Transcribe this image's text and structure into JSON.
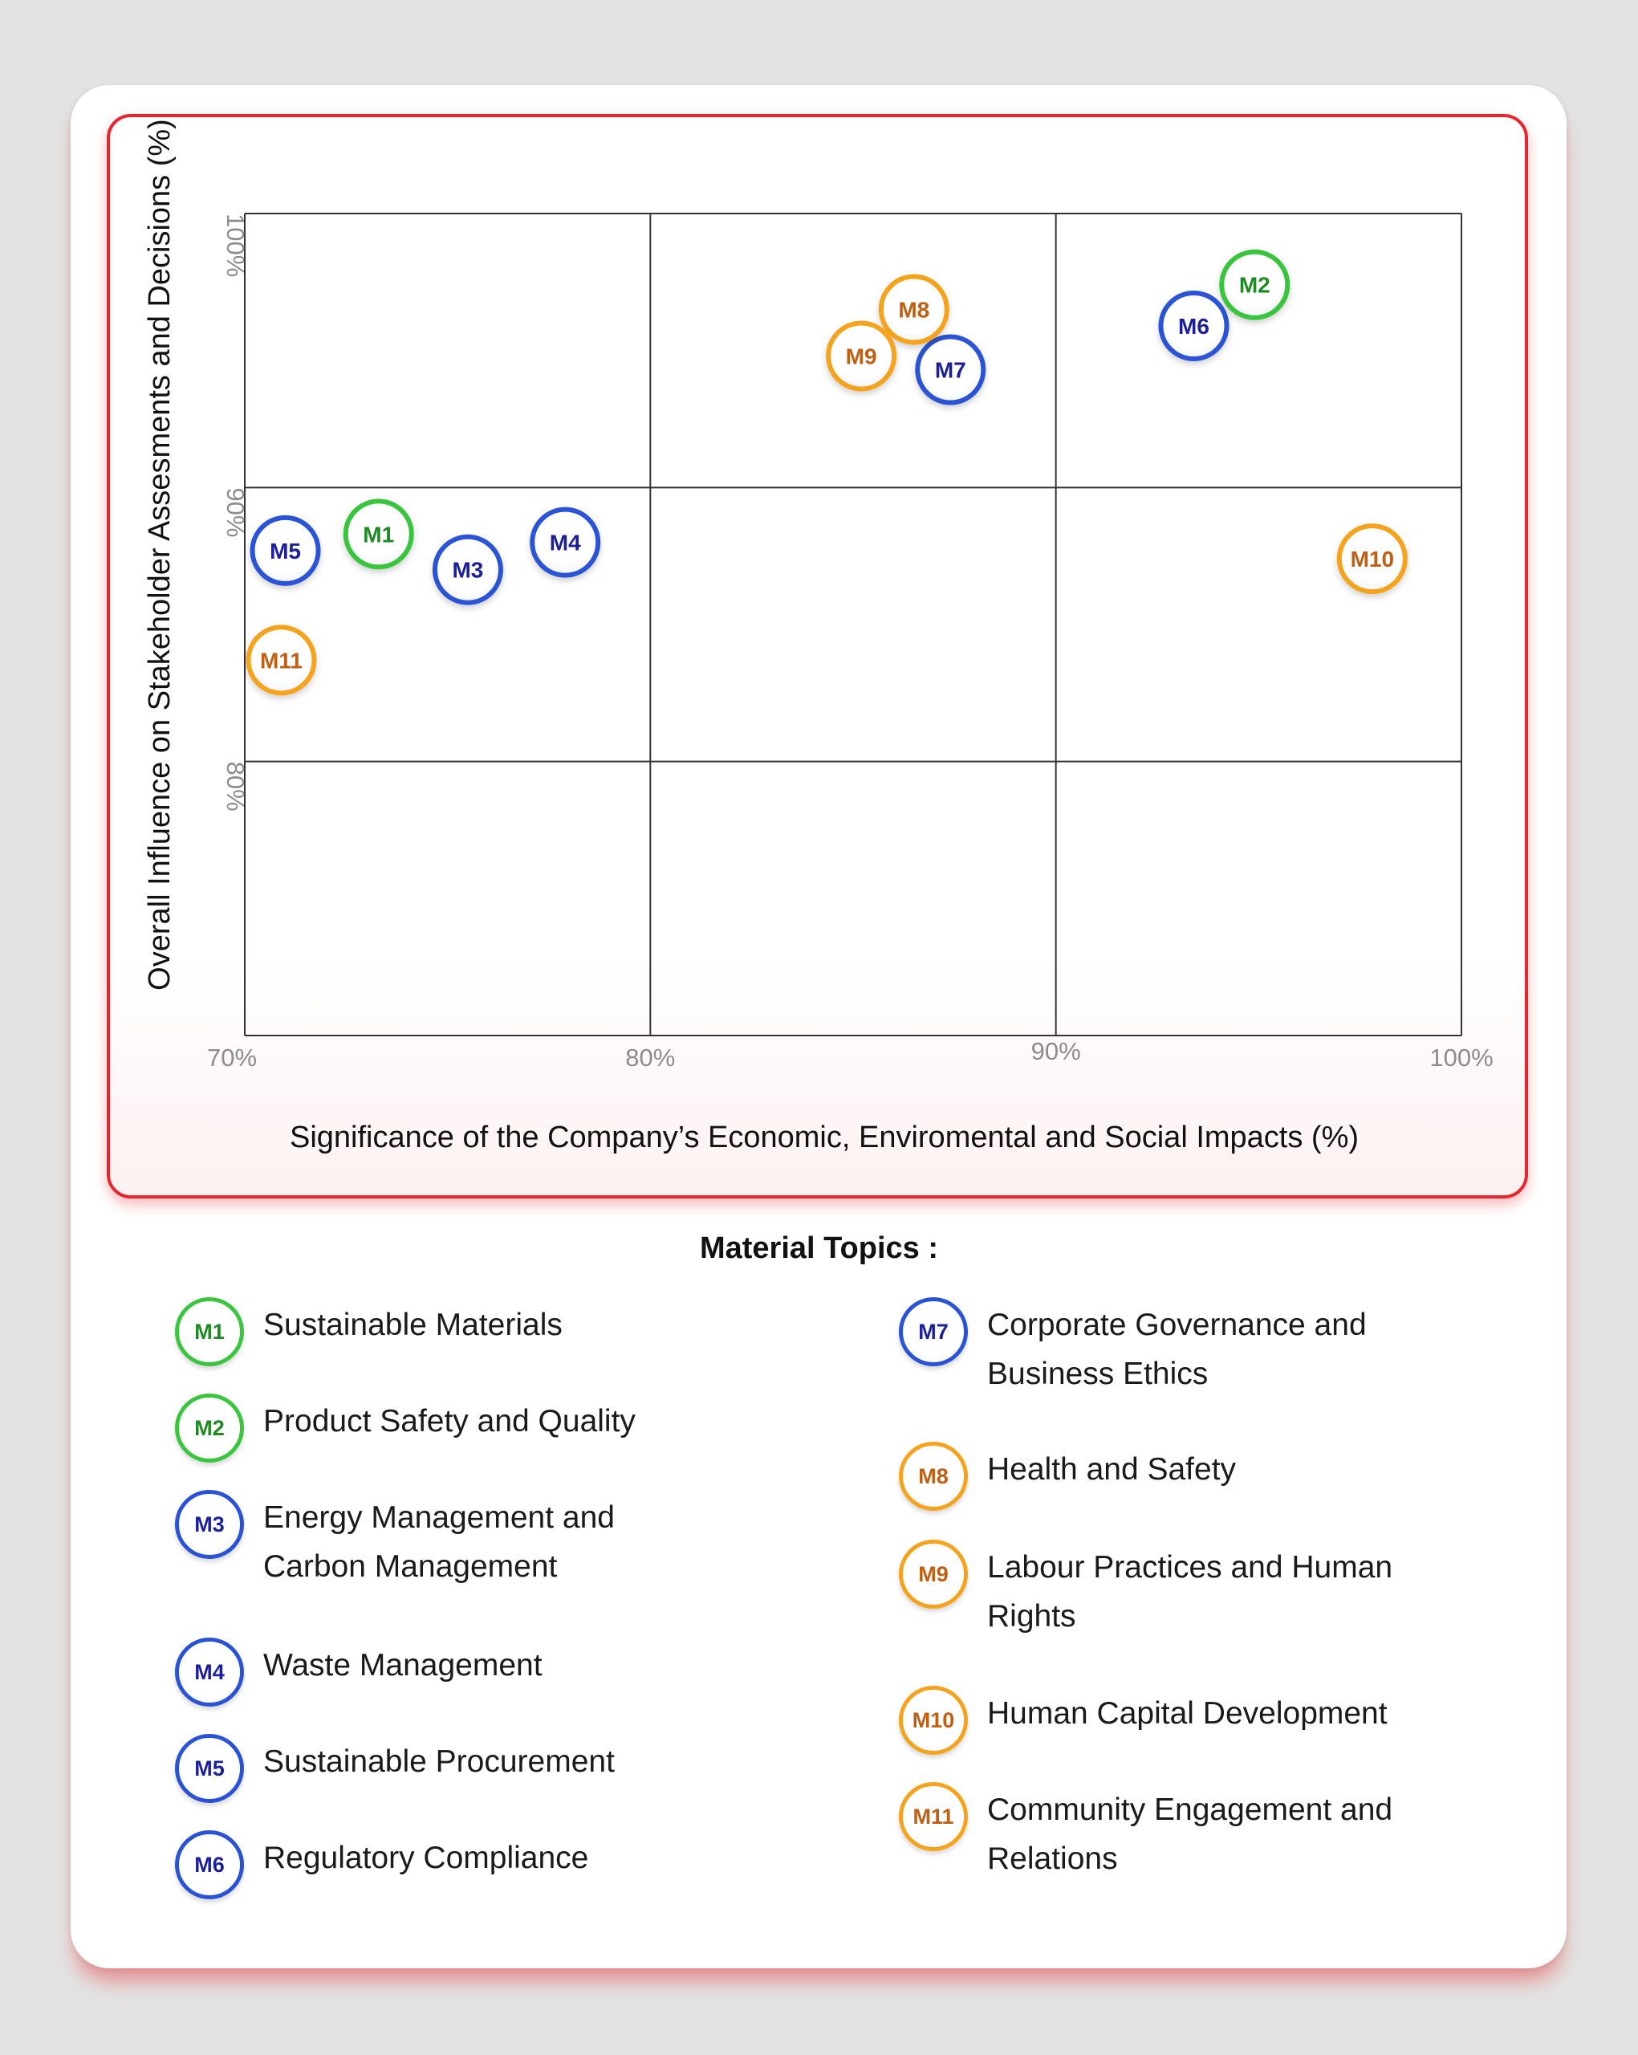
{
  "chart_data": {
    "type": "scatter",
    "xlabel": "Significance of the Company’s Economic, Enviromental and Social Impacts (%)",
    "ylabel": "Overall Influence on Stakeholder Assesments and Decisions (%)",
    "xlim": [
      70,
      100
    ],
    "ylim": [
      70,
      100
    ],
    "x_ticks": [
      "70%",
      "80%",
      "90%",
      "100%"
    ],
    "y_ticks": [
      "80%",
      "90%",
      "100%"
    ],
    "grid": true,
    "points": [
      {
        "label": "M1",
        "x": 73.3,
        "y": 88.3,
        "color": "#39c53d",
        "text_color": "#1f8a23"
      },
      {
        "label": "M2",
        "x": 94.9,
        "y": 97.4,
        "color": "#39c53d",
        "text_color": "#1f8a23"
      },
      {
        "label": "M3",
        "x": 75.5,
        "y": 87.0,
        "color": "#2a52d6",
        "text_color": "#1b1f9a"
      },
      {
        "label": "M4",
        "x": 77.9,
        "y": 88.0,
        "color": "#2a52d6",
        "text_color": "#1b1f9a"
      },
      {
        "label": "M5",
        "x": 71.0,
        "y": 87.7,
        "color": "#2a52d6",
        "text_color": "#1b1f9a"
      },
      {
        "label": "M6",
        "x": 93.4,
        "y": 95.9,
        "color": "#2a52d6",
        "text_color": "#1b1f9a"
      },
      {
        "label": "M7",
        "x": 87.4,
        "y": 94.3,
        "color": "#2a52d6",
        "text_color": "#1b1f9a"
      },
      {
        "label": "M8",
        "x": 86.5,
        "y": 96.5,
        "color": "#f5a21d",
        "text_color": "#c05f12"
      },
      {
        "label": "M9",
        "x": 85.2,
        "y": 94.8,
        "color": "#f5a21d",
        "text_color": "#c05f12"
      },
      {
        "label": "M10",
        "x": 97.8,
        "y": 87.4,
        "color": "#f5a21d",
        "text_color": "#c05f12"
      },
      {
        "label": "M11",
        "x": 70.9,
        "y": 83.7,
        "color": "#f5a21d",
        "text_color": "#c05f12"
      }
    ]
  },
  "legend": {
    "title": "Material Topics :",
    "left": [
      {
        "code": "M1",
        "text": "Sustainable Materials",
        "color": "#39c53d",
        "text_color": "#1f8a23"
      },
      {
        "code": "M2",
        "text": "Product Safety and Quality",
        "color": "#39c53d",
        "text_color": "#1f8a23"
      },
      {
        "code": "M3",
        "text": "Energy Management and Carbon Management",
        "color": "#2a52d6",
        "text_color": "#1b1f9a"
      },
      {
        "code": "M4",
        "text": "Waste Management",
        "color": "#2a52d6",
        "text_color": "#1b1f9a"
      },
      {
        "code": "M5",
        "text": "Sustainable Procurement",
        "color": "#2a52d6",
        "text_color": "#1b1f9a"
      },
      {
        "code": "M6",
        "text": "Regulatory Compliance",
        "color": "#2a52d6",
        "text_color": "#1b1f9a"
      }
    ],
    "right": [
      {
        "code": "M7",
        "text": "Corporate Governance and Business Ethics",
        "color": "#2a52d6",
        "text_color": "#1b1f9a"
      },
      {
        "code": "M8",
        "text": "Health and Safety",
        "color": "#f5a21d",
        "text_color": "#c05f12"
      },
      {
        "code": "M9",
        "text": "Labour Practices and Human Rights",
        "color": "#f5a21d",
        "text_color": "#c05f12"
      },
      {
        "code": "M10",
        "text": "Human Capital Development",
        "color": "#f5a21d",
        "text_color": "#c05f12"
      },
      {
        "code": "M11",
        "text": "Community Engagement and Relations",
        "color": "#f5a21d",
        "text_color": "#c05f12"
      }
    ]
  }
}
